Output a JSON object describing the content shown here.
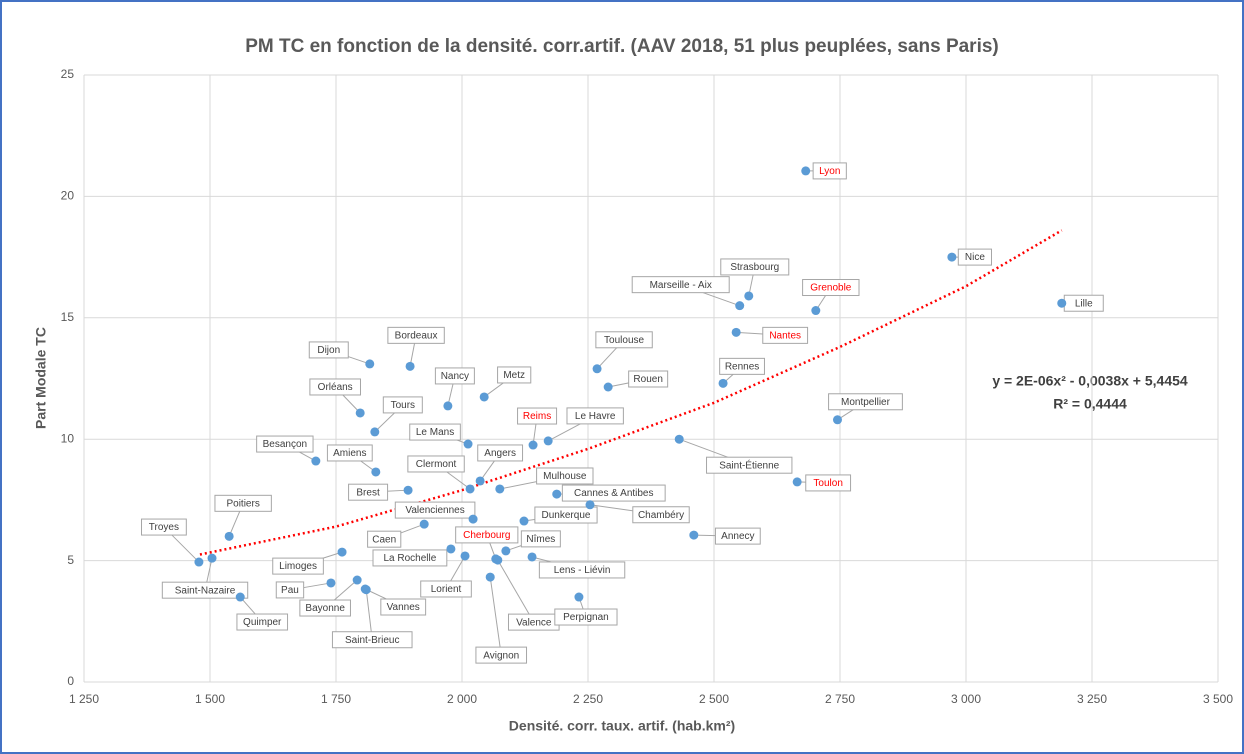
{
  "chart_data": {
    "type": "scatter",
    "title": "PM TC en fonction de la densité. corr.artif. (AAV 2018, 51 plus peuplées, sans Paris)",
    "x_label": "Densité. corr. taux. artif. (hab.km²)",
    "y_label": "Part Modale TC",
    "xlim": [
      1250,
      3500
    ],
    "xticks": [
      {
        "value": 1250,
        "label": "1 250"
      },
      {
        "value": 1500,
        "label": "1 500"
      },
      {
        "value": 1750,
        "label": "1 750"
      },
      {
        "value": 2000,
        "label": "2 000"
      },
      {
        "value": 2250,
        "label": "2 250"
      },
      {
        "value": 2500,
        "label": "2 500"
      },
      {
        "value": 2750,
        "label": "2 750"
      },
      {
        "value": 3000,
        "label": "3 000"
      },
      {
        "value": 3250,
        "label": "3 250"
      },
      {
        "value": 3500,
        "label": "3 500"
      }
    ],
    "ylim": [
      0,
      25
    ],
    "yticks": [
      0,
      5,
      10,
      15,
      20,
      25
    ],
    "grid": true,
    "color": "#5b9bd5",
    "highlight_color": "#ff0000",
    "points": [
      {
        "label": "Lyon",
        "x": 2682,
        "y": 21.05,
        "highlight": true
      },
      {
        "label": "Nice",
        "x": 2972,
        "y": 17.5
      },
      {
        "label": "Lille",
        "x": 3190,
        "y": 15.6
      },
      {
        "label": "Strasbourg",
        "x": 2569,
        "y": 15.9
      },
      {
        "label": "Marseille - Aix",
        "x": 2551,
        "y": 15.5
      },
      {
        "label": "Grenoble",
        "x": 2702,
        "y": 15.3,
        "highlight": true
      },
      {
        "label": "Nantes",
        "x": 2544,
        "y": 14.4,
        "highlight": true
      },
      {
        "label": "Rennes",
        "x": 2518,
        "y": 12.3
      },
      {
        "label": "Montpellier",
        "x": 2745,
        "y": 10.8
      },
      {
        "label": "Saint-Étienne",
        "x": 2431,
        "y": 10.0
      },
      {
        "label": "Toulon",
        "x": 2665,
        "y": 8.24,
        "highlight": true
      },
      {
        "label": "Annecy",
        "x": 2460,
        "y": 6.05
      },
      {
        "label": "Toulouse",
        "x": 2268,
        "y": 12.9
      },
      {
        "label": "Rouen",
        "x": 2290,
        "y": 12.15
      },
      {
        "label": "Reims",
        "x": 2141,
        "y": 9.76,
        "highlight": true
      },
      {
        "label": "Le Havre",
        "x": 2171,
        "y": 9.93
      },
      {
        "label": "Metz",
        "x": 2044,
        "y": 11.74
      },
      {
        "label": "Nancy",
        "x": 1972,
        "y": 11.37
      },
      {
        "label": "Bordeaux",
        "x": 1897,
        "y": 13.0
      },
      {
        "label": "Dijon",
        "x": 1817,
        "y": 13.1
      },
      {
        "label": "Orléans",
        "x": 1798,
        "y": 11.08
      },
      {
        "label": "Tours",
        "x": 1827,
        "y": 10.3
      },
      {
        "label": "Le Mans",
        "x": 2012,
        "y": 9.8
      },
      {
        "label": "Angers",
        "x": 2036,
        "y": 8.28
      },
      {
        "label": "Clermont",
        "x": 2016,
        "y": 7.95
      },
      {
        "label": "Mulhouse",
        "x": 2075,
        "y": 7.95
      },
      {
        "label": "Cannes & Antibes",
        "x": 2188,
        "y": 7.74
      },
      {
        "label": "Chambéry",
        "x": 2254,
        "y": 7.3
      },
      {
        "label": "Dunkerque",
        "x": 2123,
        "y": 6.63
      },
      {
        "label": "Valenciennes",
        "x": 2022,
        "y": 6.71
      },
      {
        "label": "Besançon",
        "x": 1710,
        "y": 9.1
      },
      {
        "label": "Amiens",
        "x": 1829,
        "y": 8.65
      },
      {
        "label": "Brest",
        "x": 1893,
        "y": 7.9
      },
      {
        "label": "Caen",
        "x": 1925,
        "y": 6.5
      },
      {
        "label": "Poitiers",
        "x": 1538,
        "y": 6.0
      },
      {
        "label": "Troyes",
        "x": 1478,
        "y": 4.94
      },
      {
        "label": "Saint-Nazaire",
        "x": 1504,
        "y": 5.1
      },
      {
        "label": "Quimper",
        "x": 1560,
        "y": 3.5
      },
      {
        "label": "Limoges",
        "x": 1762,
        "y": 5.35
      },
      {
        "label": "Pau",
        "x": 1740,
        "y": 4.08
      },
      {
        "label": "Bayonne",
        "x": 1792,
        "y": 4.2
      },
      {
        "label": "Saint-Brieuc",
        "x": 1810,
        "y": 3.8
      },
      {
        "label": "Vannes",
        "x": 1808,
        "y": 3.83
      },
      {
        "label": "La Rochelle",
        "x": 1978,
        "y": 5.48
      },
      {
        "label": "Lorient",
        "x": 2006,
        "y": 5.19
      },
      {
        "label": "Cherbourg",
        "x": 2067,
        "y": 5.07,
        "highlight": true
      },
      {
        "label": "Nîmes",
        "x": 2087,
        "y": 5.4
      },
      {
        "label": "Valence",
        "x": 2071,
        "y": 5.02
      },
      {
        "label": "Avignon",
        "x": 2056,
        "y": 4.32
      },
      {
        "label": "Lens - Liévin",
        "x": 2139,
        "y": 5.15
      },
      {
        "label": "Perpignan",
        "x": 2232,
        "y": 3.5
      }
    ],
    "trendline": {
      "color": "#ff0000",
      "x": [
        1480,
        1750,
        2000,
        2250,
        2500,
        2750,
        3000,
        3190
      ],
      "y": [
        5.25,
        6.4,
        7.9,
        9.6,
        11.5,
        13.8,
        16.3,
        18.6
      ]
    },
    "equation": "y = 2E-06x² - 0,0038x + 5,4454",
    "r_squared": "R² = 0,4444"
  }
}
